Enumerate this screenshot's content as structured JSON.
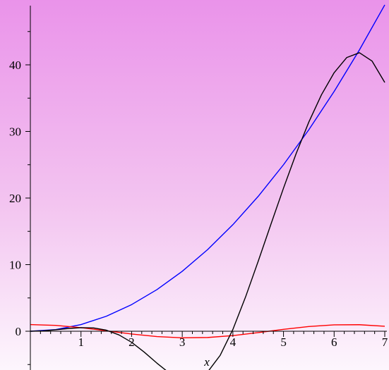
{
  "chart_data": {
    "type": "line",
    "title": "",
    "xlabel": "x",
    "ylabel": "",
    "xlim": [
      0,
      7
    ],
    "ylim": [
      -5.7,
      48.4
    ],
    "grid": false,
    "legend": "none",
    "x_ticks": [
      1,
      2,
      3,
      4,
      5,
      6,
      7
    ],
    "x_tick_labels": [
      "1",
      "2",
      "3",
      "4",
      "5",
      "6",
      "7"
    ],
    "y_ticks": [
      0,
      10,
      20,
      30,
      40
    ],
    "y_tick_labels": [
      "0",
      "10",
      "20",
      "30",
      "40"
    ],
    "series": [
      {
        "color": "#0000ff",
        "x": [
          0,
          0.5,
          1,
          1.5,
          2,
          2.5,
          3,
          3.5,
          4,
          4.5,
          5,
          5.5,
          6,
          6.5,
          7
        ],
        "y": [
          0,
          0.25,
          1,
          2.25,
          4,
          6.25,
          9,
          12.25,
          16,
          20.25,
          25,
          30.25,
          36,
          42.25,
          49
        ]
      },
      {
        "color": "#ff0000",
        "x": [
          0,
          0.5,
          1,
          1.5,
          2,
          2.5,
          3,
          3.5,
          4,
          4.5,
          5,
          5.5,
          6,
          6.5,
          7
        ],
        "y": [
          1,
          0.88,
          0.54,
          0.07,
          -0.42,
          -0.8,
          -0.99,
          -0.94,
          -0.65,
          -0.21,
          0.28,
          0.71,
          0.96,
          0.98,
          0.75
        ]
      },
      {
        "color": "#000000",
        "x": [
          0,
          0.25,
          0.5,
          0.75,
          1,
          1.25,
          1.5,
          1.75,
          2,
          2.25,
          2.5,
          2.75,
          3,
          3.25,
          3.5,
          3.75,
          4,
          4.25,
          4.5,
          4.75,
          5,
          5.25,
          5.5,
          5.75,
          6,
          6.25,
          6.5,
          6.75,
          7
        ],
        "y": [
          0,
          0.06,
          0.22,
          0.41,
          0.54,
          0.5,
          0.16,
          -0.55,
          -1.66,
          -3.14,
          -4.79,
          -6.31,
          -7.27,
          -7.3,
          -6.13,
          -3.61,
          0.27,
          5.14,
          10.5,
          16.03,
          21.49,
          26.68,
          31.41,
          35.51,
          38.82,
          41.1,
          41.82,
          40.56,
          37.35
        ]
      }
    ]
  }
}
